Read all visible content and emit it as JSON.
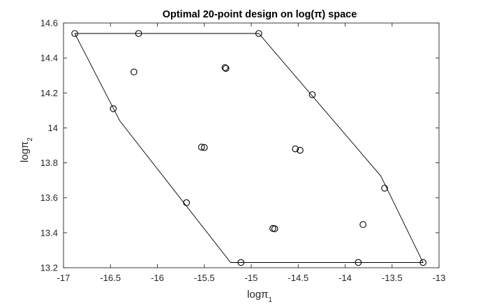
{
  "chart_data": {
    "type": "scatter",
    "title": {
      "prefix": "Optimal 20-point design on log(",
      "symbol": "π",
      "suffix": ") space"
    },
    "xlabel": {
      "text": "log",
      "symbol": "π",
      "sub": "1"
    },
    "ylabel": {
      "text": "log",
      "symbol": "π",
      "sub": "2"
    },
    "xlim": [
      -17,
      -13
    ],
    "ylim": [
      13.2,
      14.6
    ],
    "xticks": [
      {
        "v": -17,
        "label": "-17"
      },
      {
        "v": -16.5,
        "label": "-16.5"
      },
      {
        "v": -16,
        "label": "-16"
      },
      {
        "v": -15.5,
        "label": "-15.5"
      },
      {
        "v": -15,
        "label": "-15"
      },
      {
        "v": -14.5,
        "label": "-14.5"
      },
      {
        "v": -14,
        "label": "-14"
      },
      {
        "v": -13.5,
        "label": "-13.5"
      },
      {
        "v": -13,
        "label": "-13"
      }
    ],
    "yticks": [
      {
        "v": 13.2,
        "label": "13.2"
      },
      {
        "v": 13.4,
        "label": "13.4"
      },
      {
        "v": 13.6,
        "label": "13.6"
      },
      {
        "v": 13.8,
        "label": "13.8"
      },
      {
        "v": 14.0,
        "label": "14"
      },
      {
        "v": 14.2,
        "label": "14.2"
      },
      {
        "v": 14.4,
        "label": "14.4"
      },
      {
        "v": 14.6,
        "label": "14.6"
      }
    ],
    "grid": false,
    "boundary": {
      "x": [
        -16.88,
        -14.92,
        -13.62,
        -13.17,
        -15.22,
        -16.4,
        -16.88
      ],
      "y": [
        14.54,
        14.54,
        13.725,
        13.23,
        13.23,
        14.04,
        14.54
      ]
    },
    "points": {
      "x": [
        -16.88,
        -16.2,
        -14.92,
        -16.25,
        -15.28,
        -15.27,
        -14.35,
        -16.47,
        -15.53,
        -15.5,
        -14.53,
        -14.48,
        -15.69,
        -13.58,
        -14.77,
        -14.75,
        -13.81,
        -15.11,
        -13.86,
        -13.17
      ],
      "y": [
        14.54,
        14.54,
        14.54,
        14.32,
        14.345,
        14.34,
        14.19,
        14.11,
        13.89,
        13.888,
        13.88,
        13.872,
        13.572,
        13.655,
        13.425,
        13.423,
        13.447,
        13.23,
        13.23,
        13.23
      ]
    },
    "colors": {
      "line": "#000000",
      "marker": "#000000",
      "axis": "#262626"
    }
  }
}
